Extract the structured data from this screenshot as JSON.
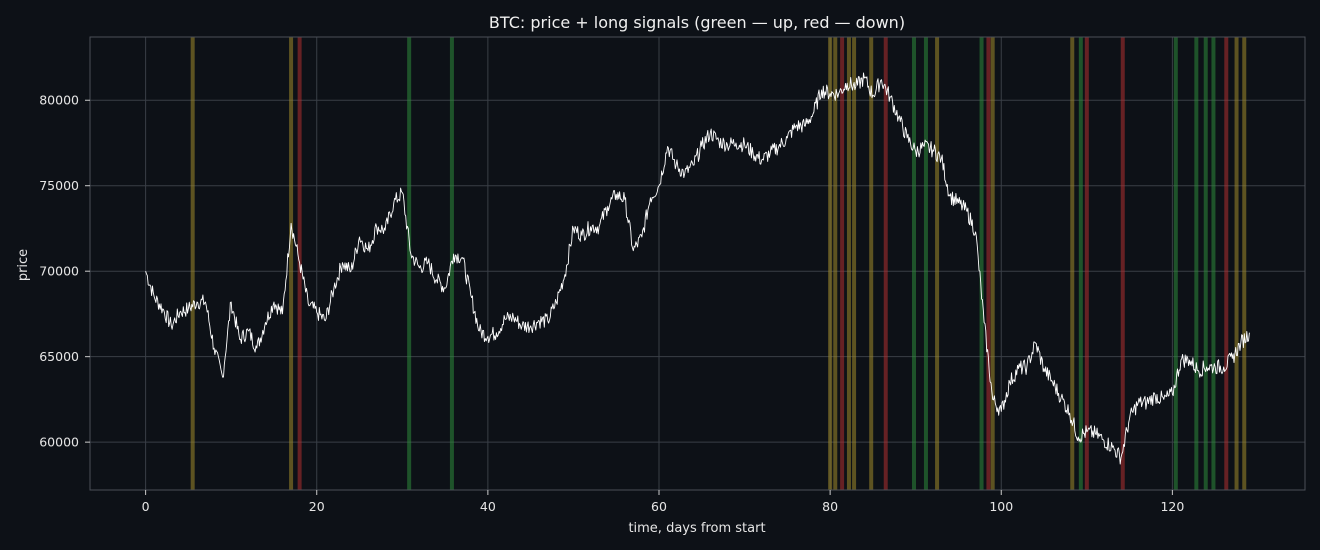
{
  "chart_data": {
    "type": "line",
    "title": "BTC: price + long signals (green — up, red — down)",
    "xlabel": "time, days from start",
    "ylabel": "price",
    "xlim": [
      -6.5,
      135.5
    ],
    "ylim": [
      57200,
      83700
    ],
    "x_ticks": [
      0,
      20,
      40,
      60,
      80,
      100,
      120
    ],
    "y_ticks": [
      60000,
      65000,
      70000,
      75000,
      80000
    ],
    "grid": true,
    "colors": {
      "background": "#0d1117",
      "price_line": "#ffffff",
      "grid": "#3a3f47",
      "up_signal": "#2e8b3a",
      "down_signal": "#b03030",
      "mixed_signal": "#a08a2a"
    },
    "series": [
      {
        "x": [
          0,
          1,
          2,
          3,
          4,
          5,
          6,
          7,
          8,
          9,
          10,
          11,
          12,
          13,
          14,
          15,
          16,
          17,
          18,
          19,
          20,
          21,
          22,
          23,
          24,
          25,
          26,
          27,
          28,
          29,
          30,
          31,
          32,
          33,
          34,
          35,
          36,
          37,
          38,
          39,
          40,
          41,
          42,
          43,
          44,
          45,
          46,
          47,
          48,
          49,
          50,
          51,
          52,
          53,
          54,
          55,
          56,
          57,
          58,
          59,
          60,
          61,
          62,
          63,
          64,
          65,
          66,
          67,
          68,
          69,
          70,
          71,
          72,
          73,
          74,
          75,
          76,
          77,
          78,
          79,
          80,
          81,
          82,
          83,
          84,
          85,
          86,
          87,
          88,
          89,
          90,
          91,
          92,
          93,
          94,
          95,
          96,
          97,
          98,
          99,
          100,
          101,
          102,
          103,
          104,
          105,
          106,
          107,
          108,
          109,
          110,
          111,
          112,
          113,
          114,
          115,
          116,
          117,
          118,
          119,
          120,
          121,
          122,
          123,
          124,
          125,
          126,
          127,
          128,
          129
        ],
        "values": [
          70000,
          68500,
          67800,
          66800,
          67600,
          67800,
          68200,
          68200,
          65500,
          63800,
          68200,
          66000,
          66500,
          65500,
          67000,
          68200,
          67500,
          72800,
          70500,
          68100,
          67600,
          67100,
          69000,
          70500,
          70000,
          72000,
          71200,
          72600,
          72400,
          74000,
          74600,
          71000,
          70200,
          70500,
          69500,
          69000,
          71000,
          70800,
          68600,
          66500,
          66200,
          66400,
          67200,
          67300,
          66800,
          66800,
          67100,
          67100,
          68200,
          69800,
          72500,
          72100,
          72600,
          72600,
          73800,
          74500,
          74200,
          71200,
          72000,
          74300,
          75000,
          77300,
          76200,
          75700,
          76200,
          77300,
          78100,
          77600,
          77400,
          77500,
          77400,
          76900,
          76500,
          76900,
          77300,
          77800,
          78500,
          78500,
          79200,
          80600,
          80400,
          80400,
          81000,
          80800,
          81300,
          80300,
          81200,
          80200,
          79000,
          77800,
          77000,
          77300,
          77100,
          76600,
          74400,
          74000,
          73500,
          72300,
          67000,
          62500,
          61800,
          63500,
          64300,
          64400,
          65800,
          64300,
          63500,
          62600,
          61700,
          60300,
          60600,
          60500,
          60100,
          59700,
          59100,
          61400,
          62300,
          62300,
          62700,
          62500,
          62800,
          64800,
          64800,
          64200,
          64400,
          64400,
          64400,
          64900,
          65800,
          66400
        ]
      }
    ],
    "signal_bands": [
      {
        "x": 5.5,
        "kind": "mixed"
      },
      {
        "x": 17.0,
        "kind": "mixed"
      },
      {
        "x": 18.0,
        "kind": "down"
      },
      {
        "x": 30.8,
        "kind": "up"
      },
      {
        "x": 35.8,
        "kind": "up"
      },
      {
        "x": 80.0,
        "kind": "mixed"
      },
      {
        "x": 80.6,
        "kind": "mixed"
      },
      {
        "x": 81.4,
        "kind": "down"
      },
      {
        "x": 82.2,
        "kind": "mixed"
      },
      {
        "x": 82.8,
        "kind": "mixed"
      },
      {
        "x": 84.8,
        "kind": "mixed"
      },
      {
        "x": 86.5,
        "kind": "down"
      },
      {
        "x": 89.8,
        "kind": "up"
      },
      {
        "x": 91.2,
        "kind": "up"
      },
      {
        "x": 92.5,
        "kind": "mixed"
      },
      {
        "x": 97.7,
        "kind": "up"
      },
      {
        "x": 98.5,
        "kind": "down"
      },
      {
        "x": 99.0,
        "kind": "mixed"
      },
      {
        "x": 108.3,
        "kind": "mixed"
      },
      {
        "x": 109.3,
        "kind": "up"
      },
      {
        "x": 110.0,
        "kind": "down"
      },
      {
        "x": 114.2,
        "kind": "down"
      },
      {
        "x": 120.4,
        "kind": "up"
      },
      {
        "x": 122.8,
        "kind": "up"
      },
      {
        "x": 123.9,
        "kind": "up"
      },
      {
        "x": 124.8,
        "kind": "up"
      },
      {
        "x": 126.3,
        "kind": "down"
      },
      {
        "x": 127.5,
        "kind": "mixed"
      },
      {
        "x": 128.4,
        "kind": "mixed"
      }
    ]
  }
}
